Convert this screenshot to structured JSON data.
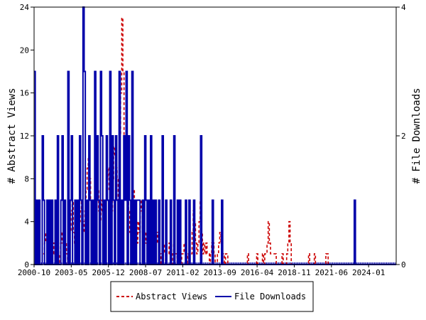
{
  "chart_data": {
    "type": "line",
    "title": "",
    "xlabel": "",
    "ylabel_left": "# Abstract Views",
    "ylabel_right": "# File Downloads",
    "ylim_left": [
      0,
      24
    ],
    "ylim_right": [
      0,
      4
    ],
    "left_ticks": [
      "0",
      "4",
      "8",
      "12",
      "16",
      "20",
      "24"
    ],
    "right_ticks": [
      "0",
      "2",
      "4"
    ],
    "x_ticks": [
      "2000-10",
      "2003-05",
      "2005-12",
      "2008-07",
      "2011-02",
      "2013-09",
      "2016-04",
      "2018-11",
      "2021-06",
      "2024-01"
    ],
    "grid": false,
    "legend": "bottom-center",
    "x_start": "2000-10",
    "x_end": "2025-12",
    "series": [
      {
        "name": "Abstract Views",
        "axis": "left",
        "color": "#cc0000",
        "style": "dashed",
        "values": [
          0,
          0,
          0,
          0,
          0,
          0,
          0,
          1,
          1,
          2,
          3,
          3,
          2,
          1,
          0,
          0,
          1,
          2,
          2,
          1,
          1,
          0,
          1,
          2,
          3,
          2,
          1,
          2,
          1,
          0,
          2,
          3,
          5,
          6,
          3,
          2,
          1,
          2,
          3,
          4,
          5,
          6,
          4,
          3,
          5,
          7,
          9,
          10,
          8,
          6,
          4,
          5,
          3,
          4,
          6,
          7,
          5,
          4,
          6,
          5,
          4,
          3,
          6,
          8,
          9,
          7,
          6,
          5,
          8,
          11,
          10,
          9,
          8,
          6,
          12,
          16,
          23,
          18,
          12,
          10,
          8,
          6,
          5,
          3,
          4,
          6,
          7,
          5,
          3,
          2,
          4,
          3,
          6,
          5,
          4,
          3,
          2,
          3,
          1,
          2,
          3,
          4,
          3,
          2,
          1,
          2,
          3,
          2,
          1,
          1,
          0,
          1,
          2,
          1,
          0,
          1,
          1,
          2,
          1,
          0,
          1,
          2,
          1,
          1,
          0,
          0,
          1,
          0,
          1,
          1,
          2,
          1,
          0,
          1,
          0,
          1,
          1,
          3,
          5,
          4,
          2,
          1,
          2,
          4,
          6,
          3,
          1,
          2,
          1,
          2,
          1,
          1,
          0,
          1,
          2,
          2,
          1,
          0,
          0,
          1,
          2,
          3,
          2,
          1,
          1,
          0,
          1,
          1,
          0,
          0,
          0,
          0,
          0,
          0,
          0,
          0,
          0,
          0,
          0,
          0,
          0,
          0,
          0,
          0,
          0,
          1,
          0,
          0,
          0,
          0,
          0,
          0,
          0,
          1,
          0,
          0,
          0,
          0,
          1,
          0,
          1,
          1,
          2,
          4,
          2,
          1,
          1,
          1,
          1,
          1,
          0,
          0,
          0,
          0,
          0,
          1,
          0,
          0,
          0,
          1,
          2,
          4,
          2,
          0,
          0,
          0,
          0,
          0,
          0,
          0,
          0,
          0,
          0,
          0,
          0,
          0,
          0,
          0,
          1,
          0,
          0,
          0,
          0,
          1,
          0,
          0,
          0,
          0,
          0,
          0,
          0,
          0,
          0,
          1,
          1,
          0,
          0,
          0,
          0,
          0,
          0,
          0,
          0,
          0,
          0,
          0,
          0,
          0,
          0,
          0,
          0,
          0,
          0,
          0,
          0,
          0,
          0,
          0,
          0,
          0,
          0,
          0,
          0,
          0,
          0,
          0,
          0,
          0,
          0,
          0,
          0,
          0,
          0,
          0,
          0,
          0,
          0,
          0,
          0,
          0,
          0,
          0,
          0,
          0,
          0,
          0,
          0,
          0,
          0,
          0,
          0,
          0,
          0,
          0
        ]
      },
      {
        "name": "File Downloads",
        "axis": "right",
        "color": "#0000aa",
        "style": "solid",
        "values": [
          3,
          0,
          1,
          0,
          1,
          0,
          0,
          2,
          1,
          0,
          0,
          1,
          0,
          1,
          0,
          1,
          0,
          0,
          1,
          0,
          2,
          0,
          0,
          1,
          2,
          0,
          1,
          0,
          0,
          3,
          0,
          1,
          2,
          0,
          0,
          1,
          0,
          1,
          0,
          2,
          1,
          0,
          4,
          3,
          0,
          1,
          0,
          2,
          1,
          0,
          1,
          0,
          3,
          0,
          2,
          1,
          0,
          3,
          2,
          0,
          1,
          0,
          2,
          1,
          0,
          3,
          0,
          2,
          1,
          0,
          2,
          1,
          0,
          3,
          0,
          1,
          0,
          2,
          1,
          3,
          0,
          2,
          1,
          0,
          3,
          0,
          1,
          0,
          1,
          1,
          1,
          0,
          0,
          1,
          0,
          2,
          1,
          0,
          1,
          0,
          2,
          0,
          1,
          0,
          1,
          0,
          0,
          1,
          0,
          0,
          2,
          0,
          0,
          1,
          0,
          0,
          0,
          1,
          0,
          0,
          2,
          0,
          0,
          1,
          0,
          1,
          0,
          0,
          0,
          0,
          1,
          0,
          0,
          1,
          0,
          0,
          0,
          1,
          0,
          0,
          0,
          0,
          0,
          2,
          0,
          0,
          0,
          0,
          0,
          0,
          0,
          0,
          0,
          1,
          0,
          0,
          0,
          0,
          0,
          0,
          0,
          1,
          0,
          0,
          0,
          0,
          0,
          0,
          0,
          0,
          0,
          0,
          0,
          0,
          0,
          0,
          0,
          0,
          0,
          0,
          0,
          0,
          0,
          0,
          0,
          0,
          0,
          0,
          0,
          0,
          0,
          0,
          0,
          0,
          0,
          0,
          0,
          0,
          0,
          0,
          0,
          0,
          0,
          0,
          0,
          0,
          0,
          0,
          0,
          0,
          0,
          0,
          0,
          0,
          0,
          0,
          0,
          0,
          0,
          0,
          0,
          0,
          0,
          0,
          0,
          0,
          0,
          0,
          0,
          0,
          0,
          0,
          0,
          0,
          0,
          0,
          0,
          0,
          0,
          0,
          0,
          0,
          0,
          0,
          0,
          0,
          0,
          0,
          0,
          0,
          0,
          0,
          0,
          0,
          0,
          0,
          0,
          0,
          0,
          0,
          0,
          0,
          0,
          0,
          0,
          0,
          0,
          0,
          0,
          0,
          0,
          0,
          0,
          0,
          0,
          1,
          0,
          0,
          0,
          0,
          0,
          0,
          0,
          0,
          0,
          0,
          0,
          0,
          0,
          0,
          0,
          0,
          0,
          0,
          0,
          0,
          0,
          0,
          0,
          0,
          0,
          0,
          0,
          0,
          0,
          0,
          0,
          0,
          0,
          0,
          0
        ]
      }
    ]
  }
}
